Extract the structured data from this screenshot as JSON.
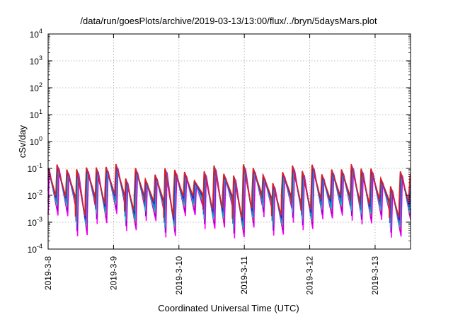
{
  "chart_data": {
    "type": "line",
    "title": "/data/run/goesPlots/archive/2019-03-13/13:00/flux/../bryn/5daysMars.plot",
    "xlabel": "Coordinated Universal Time (UTC)",
    "ylabel": "cSv/day",
    "yscale": "log",
    "ylim": [
      0.0001,
      10000
    ],
    "y_ticks": [
      {
        "base": "10",
        "exp": "-4",
        "value": 0.0001
      },
      {
        "base": "10",
        "exp": "-3",
        "value": 0.001
      },
      {
        "base": "10",
        "exp": "-2",
        "value": 0.01
      },
      {
        "base": "10",
        "exp": "-1",
        "value": 0.1
      },
      {
        "base": "10",
        "exp": "0",
        "value": 1
      },
      {
        "base": "10",
        "exp": "1",
        "value": 10
      },
      {
        "base": "10",
        "exp": "2",
        "value": 100
      },
      {
        "base": "10",
        "exp": "3",
        "value": 1000
      },
      {
        "base": "10",
        "exp": "4",
        "value": 10000
      }
    ],
    "x_ticks": [
      "2019-3-8",
      "2019-3-9",
      "2019-3-10",
      "2019-3-11",
      "2019-3-12",
      "2019-3-13"
    ],
    "xlim": [
      "2019-03-08T00:00",
      "2019-03-13T13:00"
    ],
    "grid": true,
    "legend": "none",
    "pattern": {
      "cycle_hours": 3.6,
      "peak_range": [
        0.02,
        0.15
      ],
      "trough_range": [
        0.001,
        0.012
      ]
    },
    "series_colors": [
      "#ff00ff",
      "#e000e8",
      "#9900cc",
      "#cc3399",
      "#22bbcc",
      "#00aaaa",
      "#3366cc",
      "#2222dd",
      "#dd2222"
    ]
  }
}
